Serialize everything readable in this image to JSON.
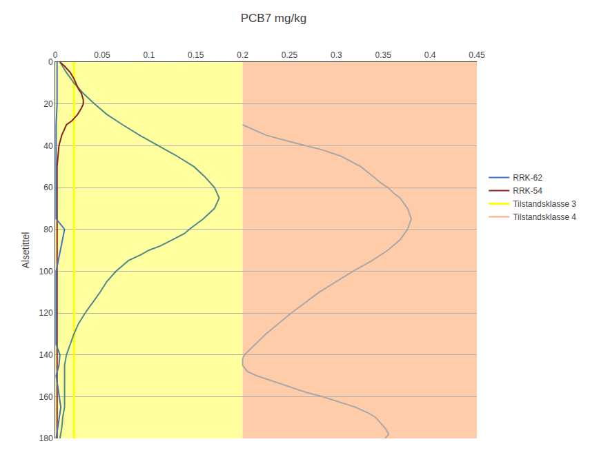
{
  "chart_data": {
    "type": "line",
    "title": "PCB7 mg/kg",
    "ylabel": "Alsetittel",
    "xlim": [
      0,
      0.45
    ],
    "ylim": [
      180,
      0
    ],
    "xticks": [
      0,
      0.05,
      0.1,
      0.15,
      0.2,
      0.25,
      0.3,
      0.35,
      0.4,
      0.45
    ],
    "yticks": [
      0,
      20,
      40,
      60,
      80,
      100,
      120,
      140,
      160,
      180
    ],
    "grid": "y",
    "legend": "right",
    "regions": [
      {
        "x": [
          0,
          0.2
        ],
        "color": "#FFFFA0"
      },
      {
        "x": [
          0.2,
          0.45
        ],
        "color": "#FFCCAA"
      }
    ],
    "reference_lines": [
      {
        "x": 0.02,
        "color": "#FFFF00",
        "name": "Tilstandsklasse 3"
      }
    ],
    "legend_items": [
      {
        "name": "Tilstandsklasse 4",
        "color": "#FFAA80"
      }
    ],
    "legend_order": [
      "RRK-62",
      "RRK-54",
      "Tilstandsklasse 3",
      "Tilstandsklasse 4"
    ],
    "series": [
      {
        "color": "#4C8A8A",
        "depth": [
          0,
          5,
          10,
          15,
          20,
          25,
          30,
          35,
          40,
          45,
          50,
          55,
          60,
          63,
          65,
          70,
          75,
          80,
          82,
          85,
          88,
          90,
          92,
          95,
          100,
          105,
          110,
          115,
          120,
          125,
          130,
          135,
          140,
          145,
          150,
          155,
          160,
          165,
          170,
          175,
          180
        ],
        "values": [
          0.005,
          0.012,
          0.02,
          0.03,
          0.042,
          0.055,
          0.072,
          0.09,
          0.11,
          0.13,
          0.148,
          0.16,
          0.17,
          0.173,
          0.175,
          0.17,
          0.158,
          0.143,
          0.138,
          0.125,
          0.112,
          0.1,
          0.092,
          0.078,
          0.065,
          0.055,
          0.048,
          0.04,
          0.032,
          0.025,
          0.02,
          0.016,
          0.012,
          0.01,
          0.01,
          0.01,
          0.01,
          0.01,
          0.008,
          0.007,
          0.005
        ]
      },
      {
        "color": "#A8A8A8",
        "depth": [
          30,
          32,
          35,
          38,
          40,
          42,
          45,
          48,
          50,
          55,
          58,
          60,
          63,
          65,
          68,
          70,
          75,
          80,
          85,
          90,
          95,
          100,
          110,
          120,
          130,
          140,
          142,
          145,
          148,
          150,
          152,
          155,
          158,
          160,
          163,
          165,
          168,
          170,
          175,
          178,
          180
        ],
        "values": [
          0.2,
          0.21,
          0.225,
          0.25,
          0.268,
          0.285,
          0.305,
          0.318,
          0.326,
          0.34,
          0.348,
          0.355,
          0.362,
          0.368,
          0.373,
          0.376,
          0.38,
          0.376,
          0.368,
          0.355,
          0.338,
          0.318,
          0.282,
          0.252,
          0.225,
          0.202,
          0.2,
          0.2,
          0.205,
          0.215,
          0.228,
          0.248,
          0.268,
          0.285,
          0.305,
          0.32,
          0.335,
          0.342,
          0.352,
          0.356,
          0.352
        ]
      },
      {
        "name": "RRK-54",
        "color": "#8B2020",
        "depth": [
          0,
          2,
          5,
          8,
          10,
          13,
          15,
          18,
          20,
          22,
          25,
          28,
          30,
          35,
          40,
          45,
          50,
          55,
          60,
          80,
          100,
          120,
          140,
          160,
          165,
          170,
          175,
          180
        ],
        "values": [
          0.005,
          0.01,
          0.016,
          0.02,
          0.022,
          0.025,
          0.028,
          0.03,
          0.03,
          0.028,
          0.024,
          0.018,
          0.012,
          0.007,
          0.004,
          0.003,
          0.002,
          0.002,
          0.002,
          0.002,
          0.002,
          0.002,
          0.002,
          0.002,
          0.002,
          0.002,
          0.002,
          0.002
        ]
      },
      {
        "name": "RRK-62",
        "color": "#4472C4",
        "depth": [
          0,
          5,
          10,
          15,
          20,
          30,
          40,
          75,
          80,
          100,
          105,
          135,
          140,
          145,
          150,
          165,
          180
        ],
        "values": [
          0.002,
          0.002,
          0.002,
          0.002,
          0.002,
          0.001,
          0.001,
          0.001,
          0.01,
          0.001,
          0.001,
          0.001,
          0.005,
          0.004,
          0.001,
          0.006,
          0.001
        ]
      }
    ]
  }
}
